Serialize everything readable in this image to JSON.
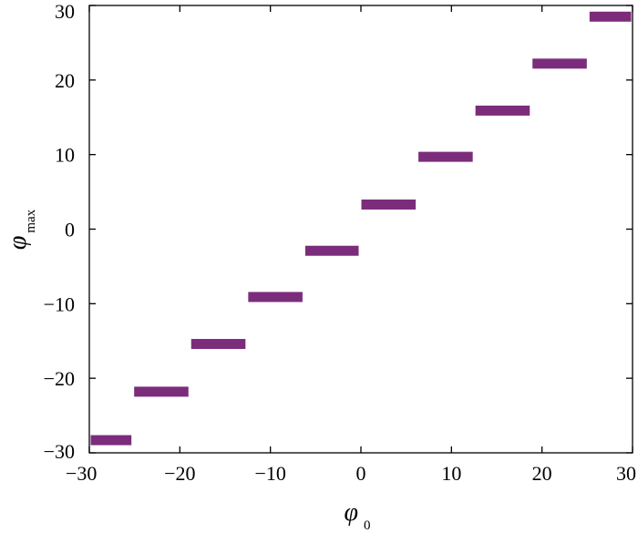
{
  "chart_data": {
    "type": "scatter",
    "title": "",
    "xlabel": {
      "symbol": "φ",
      "subscript": "0"
    },
    "ylabel": {
      "symbol": "φ",
      "subscript": "max"
    },
    "xlim": [
      -30,
      30
    ],
    "ylim": [
      -30,
      30
    ],
    "xticks": [
      -30,
      -20,
      -10,
      0,
      10,
      20,
      30
    ],
    "yticks": [
      -30,
      -20,
      -10,
      0,
      10,
      20,
      30
    ],
    "xtick_labels": [
      "−30",
      "−20",
      "−10",
      "0",
      "10",
      "20",
      "30"
    ],
    "ytick_labels": [
      "−30",
      "−20",
      "−10",
      "0",
      "10",
      "20",
      "30"
    ],
    "grid": false,
    "legend": "none",
    "series": [
      {
        "color": "#7b2d7b",
        "plateaus": [
          {
            "x_start": -30.0,
            "x_end": -25.2,
            "y": -28.3
          },
          {
            "x_start": -25.2,
            "x_end": -18.9,
            "y": -21.8
          },
          {
            "x_start": -18.9,
            "x_end": -12.6,
            "y": -15.4
          },
          {
            "x_start": -12.6,
            "x_end": -6.3,
            "y": -9.1
          },
          {
            "x_start": -6.3,
            "x_end": -0.1,
            "y": -2.9
          },
          {
            "x_start": -0.1,
            "x_end": 6.2,
            "y": 3.3
          },
          {
            "x_start": 6.2,
            "x_end": 12.5,
            "y": 9.7
          },
          {
            "x_start": 12.5,
            "x_end": 18.8,
            "y": 15.9
          },
          {
            "x_start": 18.8,
            "x_end": 25.1,
            "y": 22.2
          },
          {
            "x_start": 25.1,
            "x_end": 30.0,
            "y": 28.5
          }
        ]
      }
    ]
  }
}
